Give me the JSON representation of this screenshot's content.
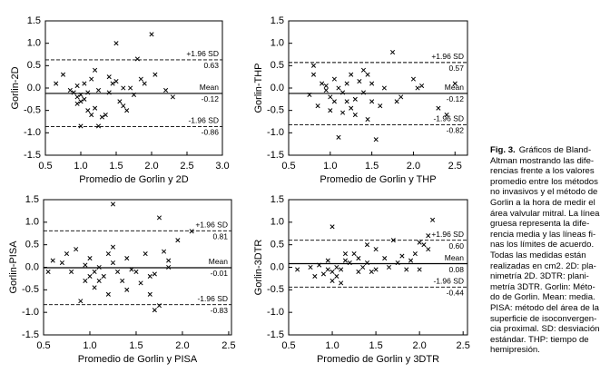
{
  "chart_data": [
    {
      "type": "scatter",
      "x_label": "Promedio de Gorlin y 2D",
      "y_label": "Gorlin-2D",
      "color": "#000000",
      "xlim": [
        0.5,
        3.0
      ],
      "ylim": [
        -1.5,
        1.5
      ],
      "xticks": [
        0.5,
        {
          "value": 1,
          "label": "1.0"
        },
        1.5,
        {
          "value": 2,
          "label": "2.0"
        },
        2.5,
        {
          "value": 3,
          "label": "3.0"
        }
      ],
      "yticks": [
        -1.5,
        {
          "value": -1,
          "label": "-1.0"
        },
        -0.5,
        {
          "value": 0,
          "label": "0.0"
        },
        0.5,
        {
          "value": 1,
          "label": "1.0"
        },
        1.5
      ],
      "lines": [
        {
          "name": "+1.96 SD",
          "value": 0.63,
          "style": "dashed"
        },
        {
          "name": "Mean",
          "value": -0.12,
          "style": "solid"
        },
        {
          "name": "-1.96 SD",
          "value": -0.86,
          "style": "dashed"
        }
      ],
      "x": [
        0.65,
        0.75,
        0.85,
        0.9,
        0.95,
        0.95,
        1.0,
        1.0,
        1.05,
        1.05,
        1.1,
        1.1,
        1.15,
        1.15,
        1.2,
        1.2,
        1.25,
        1.3,
        1.35,
        1.4,
        1.45,
        1.5,
        1.5,
        1.55,
        1.6,
        1.6,
        1.65,
        1.7,
        1.75,
        1.8,
        1.85,
        1.9,
        2.0,
        2.05,
        2.2,
        2.3,
        1.0,
        1.25,
        0.95,
        1.4
      ],
      "values": [
        0.1,
        0.3,
        -0.05,
        -0.1,
        -0.2,
        -0.35,
        -0.3,
        -0.15,
        -0.25,
        0.1,
        -0.1,
        -0.5,
        0.2,
        -0.6,
        -0.45,
        0.4,
        -0.05,
        -0.65,
        -0.6,
        0.25,
        0.1,
        1.0,
        0.15,
        -0.3,
        0.0,
        -0.4,
        -0.5,
        0.0,
        -0.15,
        0.65,
        0.2,
        0.1,
        1.2,
        0.3,
        -0.05,
        -0.2,
        -0.85,
        -0.85,
        0.05,
        -0.1
      ]
    },
    {
      "type": "scatter",
      "x_label": "Promedio de Gorlin y THP",
      "y_label": "Gorlin-THP",
      "color": "#000000",
      "xlim": [
        0.5,
        2.65
      ],
      "ylim": [
        -1.5,
        1.5
      ],
      "xticks": [
        0.5,
        {
          "value": 1,
          "label": "1.0"
        },
        1.5,
        {
          "value": 2,
          "label": "2.0"
        },
        2.5
      ],
      "yticks": [
        -1.5,
        {
          "value": -1,
          "label": "-1.0"
        },
        -0.5,
        {
          "value": 0,
          "label": "0.0"
        },
        0.5,
        {
          "value": 1,
          "label": "1.0"
        },
        1.5
      ],
      "lines": [
        {
          "name": "+1.96 SD",
          "value": 0.57,
          "style": "dashed"
        },
        {
          "name": "Mean",
          "value": -0.12,
          "style": "solid"
        },
        {
          "name": "-1.96 SD",
          "value": -0.82,
          "style": "dashed"
        }
      ],
      "x": [
        0.75,
        0.8,
        0.8,
        0.85,
        0.9,
        0.95,
        1.0,
        1.0,
        1.05,
        1.05,
        1.1,
        1.1,
        1.15,
        1.15,
        1.2,
        1.2,
        1.25,
        1.3,
        1.3,
        1.35,
        1.4,
        1.4,
        1.45,
        1.45,
        1.5,
        1.5,
        1.55,
        1.6,
        1.65,
        1.75,
        1.8,
        1.85,
        2.0,
        2.05,
        2.1,
        2.3,
        2.4,
        2.5,
        0.95,
        1.25
      ],
      "values": [
        -0.15,
        0.5,
        0.3,
        -0.4,
        0.1,
        0.05,
        -0.2,
        -0.5,
        0.2,
        -0.3,
        -1.1,
        0.0,
        -0.1,
        -0.55,
        0.1,
        -0.3,
        0.3,
        -0.25,
        -0.6,
        0.15,
        0.4,
        -0.1,
        0.3,
        -0.7,
        0.1,
        -0.3,
        -1.15,
        -0.4,
        0.0,
        0.8,
        -0.3,
        -0.2,
        0.2,
        0.0,
        0.05,
        -0.45,
        -0.6,
        0.1,
        -0.05,
        -0.45
      ]
    },
    {
      "type": "scatter",
      "x_label": "Promedio de Gorlin y PISA",
      "y_label": "Gorlin-PISA",
      "color": "#000000",
      "xlim": [
        0.5,
        2.53
      ],
      "ylim": [
        -1.5,
        1.5
      ],
      "xticks": [
        0.5,
        {
          "value": 1,
          "label": "1.0"
        },
        1.5,
        {
          "value": 2,
          "label": "2.0"
        },
        2.5
      ],
      "yticks": [
        -1.5,
        {
          "value": -1,
          "label": "-1.0"
        },
        -0.5,
        {
          "value": 0,
          "label": "0.0"
        },
        0.5,
        {
          "value": 1,
          "label": "1.0"
        },
        1.5
      ],
      "lines": [
        {
          "name": "+1.96 SD",
          "value": 0.81,
          "style": "dashed"
        },
        {
          "name": "Mean",
          "value": -0.01,
          "style": "solid"
        },
        {
          "name": "-1.96 SD",
          "value": -0.83,
          "style": "dashed"
        }
      ],
      "x": [
        0.55,
        0.6,
        0.7,
        0.75,
        0.8,
        0.85,
        0.9,
        0.95,
        0.95,
        1.0,
        1.0,
        1.05,
        1.05,
        1.1,
        1.1,
        1.15,
        1.2,
        1.2,
        1.25,
        1.25,
        1.3,
        1.35,
        1.4,
        1.4,
        1.45,
        1.5,
        1.55,
        1.6,
        1.65,
        1.7,
        1.75,
        1.75,
        1.8,
        1.85,
        1.95,
        2.1,
        1.7,
        1.65,
        1.25,
        1.85
      ],
      "values": [
        -0.1,
        0.15,
        0.1,
        0.3,
        -0.1,
        0.4,
        -0.75,
        0.05,
        -0.3,
        0.2,
        -0.2,
        -0.1,
        -0.45,
        0.0,
        -0.3,
        -0.2,
        0.3,
        -0.6,
        1.4,
        0.1,
        -0.1,
        -0.3,
        0.2,
        -0.5,
        -0.05,
        -0.1,
        -0.35,
        0.3,
        -0.6,
        -0.15,
        1.1,
        -0.85,
        0.35,
        0.0,
        0.6,
        0.8,
        -0.95,
        -0.2,
        0.45,
        0.15
      ]
    },
    {
      "type": "scatter",
      "x_label": "Promedio de Gorlin y 3DTR",
      "y_label": "Gorlin-3DTR",
      "color": "#000000",
      "xlim": [
        0.5,
        2.55
      ],
      "ylim": [
        -1.5,
        1.5
      ],
      "xticks": [
        0.5,
        {
          "value": 1,
          "label": "1.0"
        },
        1.5,
        {
          "value": 2,
          "label": "2.0"
        },
        2.5
      ],
      "yticks": [
        -1.5,
        {
          "value": -1,
          "label": "-1.0"
        },
        -0.5,
        {
          "value": 0,
          "label": "0.0"
        },
        0.5,
        {
          "value": 1,
          "label": "1.0"
        },
        1.5
      ],
      "lines": [
        {
          "name": "+1.96 SD",
          "value": 0.6,
          "value_label": "0.60",
          "style": "dashed"
        },
        {
          "name": "Mean",
          "value": 0.08,
          "style": "solid"
        },
        {
          "name": "-1.96 SD",
          "value": -0.44,
          "style": "dashed"
        }
      ],
      "x": [
        0.6,
        0.75,
        0.8,
        0.85,
        0.9,
        0.95,
        1.0,
        1.0,
        1.0,
        1.05,
        1.05,
        1.1,
        1.1,
        1.15,
        1.2,
        1.25,
        1.3,
        1.35,
        1.4,
        1.4,
        1.45,
        1.5,
        1.5,
        1.6,
        1.65,
        1.7,
        1.75,
        1.8,
        1.85,
        1.9,
        1.95,
        2.0,
        2.05,
        2.1,
        2.15,
        2.0,
        2.1,
        1.15,
        0.95,
        1.3
      ],
      "values": [
        -0.05,
        0.0,
        -0.2,
        0.05,
        -0.15,
        0.15,
        0.9,
        -0.1,
        -0.3,
        0.0,
        -0.2,
        -0.05,
        -0.35,
        0.15,
        0.1,
        0.3,
        0.2,
        0.0,
        0.5,
        0.1,
        -0.1,
        0.4,
        -0.05,
        0.2,
        0.0,
        0.6,
        0.1,
        0.25,
        -0.05,
        0.15,
        0.3,
        0.55,
        0.5,
        0.7,
        1.05,
        -0.05,
        0.4,
        0.3,
        -0.05,
        -0.1
      ]
    }
  ],
  "caption": {
    "label": "Fig. 3.",
    "lines": [
      "Gráficos de Bland-",
      "Altman mostrando las dife-",
      "rencias frente a los valores",
      "promedio entre los métodos",
      "no invasivos y el método de",
      "Gorlin a la hora de medir el",
      "área valvular mitral. La línea",
      "gruesa representa la dife-",
      "rencia media y las líneas fi-",
      "nas los límites de acuerdo.",
      "Todas las medidas están",
      "realizadas en cm2. 2D: pla-",
      "nimetría 2D. 3DTR: plani-",
      "metría 3DTR. Gorlin: Méto-",
      "do de Gorlin. Mean: media.",
      "PISA: método del área de la",
      "superficie de isoconvergen-",
      "cia proximal. SD: desviación",
      "estándar. THP: tiempo de",
      "hemipresión."
    ]
  }
}
